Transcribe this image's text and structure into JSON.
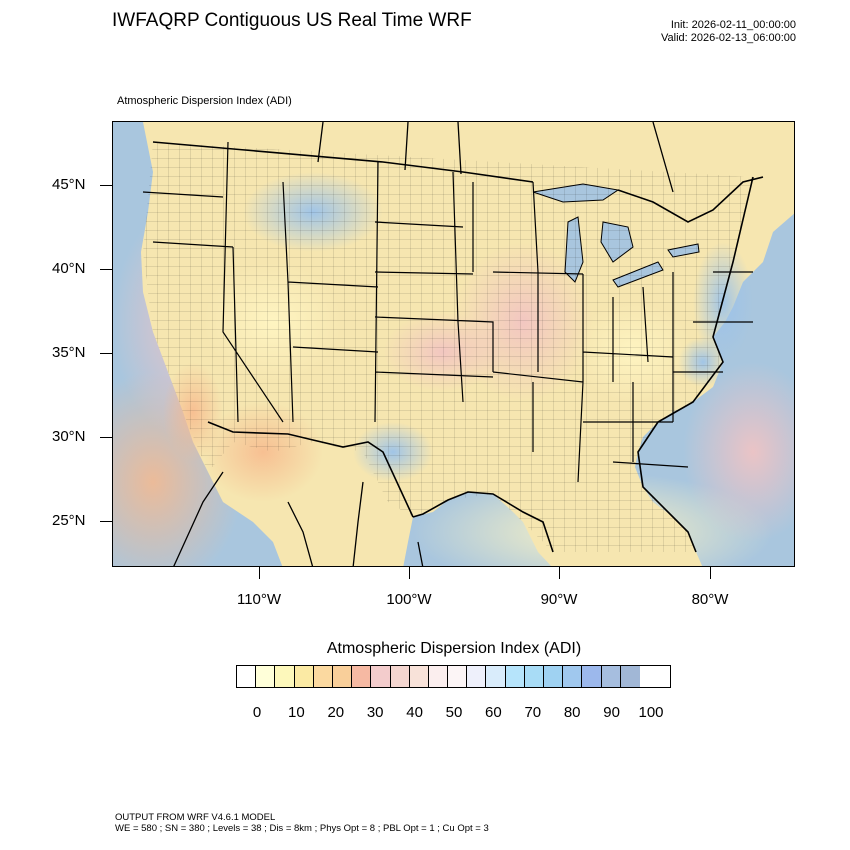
{
  "header": {
    "title": "IWFAQRP Contiguous US Real Time WRF",
    "init": "Init: 2026-02-11_00:00:00",
    "valid": "Valid: 2026-02-13_06:00:00"
  },
  "map": {
    "subtitle": "Atmospheric Dispersion Index   (ADI)",
    "latitude_labels": [
      "45°N",
      "40°N",
      "35°N",
      "30°N",
      "25°N"
    ],
    "longitude_labels": [
      "110°W",
      "100°W",
      "90°W",
      "80°W"
    ],
    "ocean_color": "#a9c6de",
    "land_base_color": "#f6e6b0",
    "border_color": "#000000"
  },
  "colorbar": {
    "title": "Atmospheric Dispersion Index  (ADI)",
    "tick_labels": [
      "0",
      "10",
      "20",
      "30",
      "40",
      "50",
      "60",
      "70",
      "80",
      "90",
      "100"
    ],
    "colors": [
      "#ffffff",
      "#ffffd9",
      "#fdf8bb",
      "#fbeaa4",
      "#fbd9a0",
      "#f9cf9a",
      "#f6b9a3",
      "#f3cccc",
      "#f4d6d0",
      "#f8e2d9",
      "#fbeeee",
      "#fcf5f6",
      "#eef0fb",
      "#d9ecfb",
      "#b6e4fb",
      "#a8dcf6",
      "#9fd2f2",
      "#a0c8ee",
      "#9cb8ec",
      "#a6bedf",
      "#a1b7d6"
    ]
  },
  "footer": {
    "line1": "OUTPUT FROM WRF V4.6.1 MODEL",
    "line2": "WE = 580 ; SN = 380 ; Levels = 38 ; Dis = 8km ; Phys Opt = 8 ; PBL Opt = 1 ; Cu Opt = 3"
  }
}
